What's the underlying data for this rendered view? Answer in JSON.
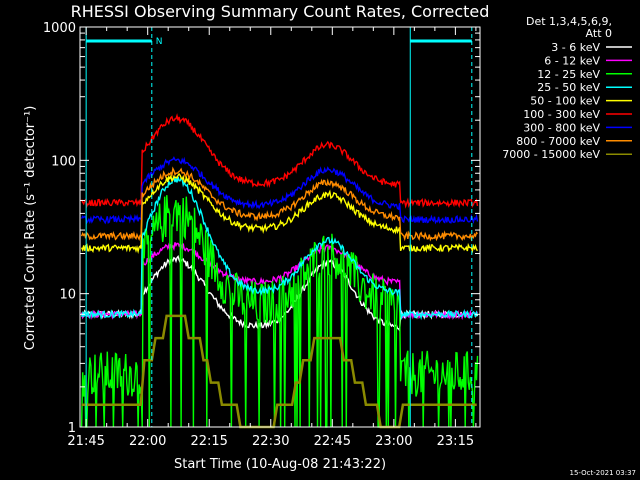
{
  "chart_data": {
    "type": "line",
    "title": "RHESSI Observing Summary Count Rates, Corrected",
    "xlabel": "Start Time (10-Aug-08 21:43:22)",
    "ylabel": "Corrected Count Rate (s⁻¹ detector⁻¹)",
    "yscale": "log",
    "ylim": [
      1,
      1000
    ],
    "xlim_minutes": [
      -1.5,
      96
    ],
    "x_ticks": [
      {
        "label": "21:45",
        "min": 0
      },
      {
        "label": "22:00",
        "min": 15
      },
      {
        "label": "22:15",
        "min": 30
      },
      {
        "label": "22:30",
        "min": 45
      },
      {
        "label": "22:45",
        "min": 60
      },
      {
        "label": "23:00",
        "min": 75
      },
      {
        "label": "23:15",
        "min": 90
      }
    ],
    "y_ticks": [
      {
        "label": "1",
        "value": 1
      },
      {
        "label": "10",
        "value": 10
      },
      {
        "label": "100",
        "value": 100
      },
      {
        "label": "1000",
        "value": 1000
      }
    ],
    "legend": {
      "header": [
        "Det 1,3,4,5,6,9,",
        "Att 0"
      ],
      "position": "right"
    },
    "markers": {
      "night_intervals": [
        [
          0,
          16
        ],
        [
          79,
          94
        ]
      ],
      "night_label": "N",
      "night_color": "#00ffff"
    },
    "series": [
      {
        "name": "3 - 6 keV",
        "color": "#ffffff",
        "pre": 7,
        "post": 7,
        "peak1": 18,
        "valley": 5.5,
        "peak2": 17,
        "gap": true
      },
      {
        "name": "6 - 12 keV",
        "color": "#ff00ff",
        "pre": 7,
        "post": 7,
        "peak1": 23,
        "valley": 12,
        "peak2": 22,
        "gap": true
      },
      {
        "name": "12 - 25 keV",
        "color": "#00ff00",
        "pre": 2.5,
        "post": 2.5,
        "peak1": 42,
        "valley": 8,
        "peak2": 20,
        "noisy": true
      },
      {
        "name": "25 - 50 keV",
        "color": "#00ffff",
        "pre": 7,
        "post": 7,
        "peak1": 72,
        "valley": 10,
        "peak2": 25
      },
      {
        "name": "50 - 100 keV",
        "color": "#ffff00",
        "pre": 22,
        "post": 22,
        "peak1": 75,
        "valley": 30,
        "peak2": 55
      },
      {
        "name": "100 - 300 keV",
        "color": "#ff0000",
        "pre": 48,
        "post": 48,
        "peak1": 205,
        "valley": 65,
        "peak2": 130
      },
      {
        "name": "300 - 800 keV",
        "color": "#0000ff",
        "pre": 36,
        "post": 36,
        "peak1": 100,
        "valley": 45,
        "peak2": 85
      },
      {
        "name": "800 - 7000 keV",
        "color": "#ff8c00",
        "pre": 27,
        "post": 27,
        "peak1": 83,
        "valley": 37,
        "peak2": 68
      },
      {
        "name": "7000 - 15000 keV",
        "color": "#8b8b00",
        "pre": 1.5,
        "post": 1.5,
        "peak1": 6.5,
        "valley": 1,
        "peak2": 5,
        "stepped": true
      }
    ],
    "timestamp": "15-Oct-2021 03:37"
  }
}
